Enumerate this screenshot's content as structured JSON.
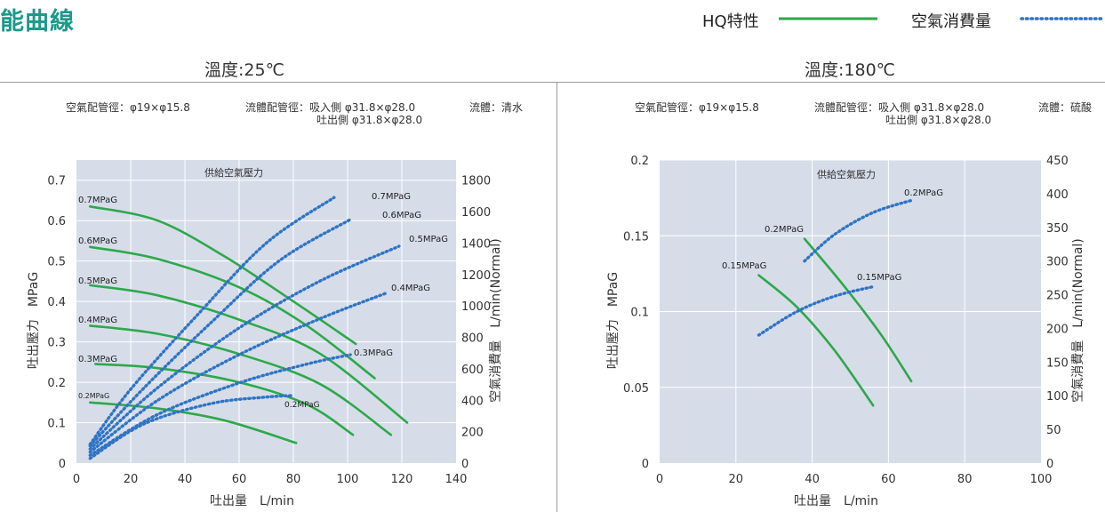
{
  "header": {
    "title": "能曲線",
    "legend": [
      {
        "label": "HQ特性",
        "style": "solid",
        "color": "#2ea84a"
      },
      {
        "label": "空氣消費量",
        "style": "dotted",
        "color": "#2f74c4"
      }
    ]
  },
  "colors": {
    "hq": "#2ea84a",
    "air": "#2f74c4",
    "plot_bg": "#d6dde9",
    "title": "#1a9a8a"
  },
  "panels": [
    {
      "title": "溫度:25℃",
      "spec": {
        "air_pipe": "空氣配管徑：φ19×φ15.8",
        "fluid_pipe_in": "流體配管徑：吸入側  φ31.8×φ28.0",
        "fluid_pipe_out": "吐出側  φ31.8×φ28.0",
        "fluid": "流體：清水"
      }
    },
    {
      "title": "溫度:180℃",
      "spec": {
        "air_pipe": "空氣配管徑：φ19×φ15.8",
        "fluid_pipe_in": "流體配管徑：吸入側  φ31.8×φ28.0",
        "fluid_pipe_out": "吐出側  φ31.8×φ28.0",
        "fluid": "流體：硫酸"
      }
    }
  ],
  "chart_data": [
    {
      "type": "line",
      "annotation": "供給空氣壓力",
      "xlabel": "吐出量　L/min",
      "ylabel": "吐出壓力　MPaG",
      "y2label": "空氣消費量　L/min(Normal)",
      "xlim": [
        0,
        140
      ],
      "ylim": [
        0,
        0.75
      ],
      "y2lim": [
        0,
        1928.57
      ],
      "x_ticks": [
        0,
        20,
        40,
        60,
        80,
        100,
        120,
        140
      ],
      "y_ticks": [
        0,
        0.1,
        0.2,
        0.3,
        0.4,
        0.5,
        0.6,
        0.7
      ],
      "y2_ticks": [
        0,
        200,
        400,
        600,
        800,
        1000,
        1200,
        1400,
        1600,
        1800
      ],
      "grid": true,
      "hq_series": [
        {
          "name": "0.7MPaG",
          "x": [
            5,
            30,
            55,
            80,
            103
          ],
          "y": [
            0.635,
            0.6,
            0.51,
            0.4,
            0.295
          ]
        },
        {
          "name": "0.6MPaG",
          "x": [
            5,
            30,
            60,
            85,
            110
          ],
          "y": [
            0.535,
            0.505,
            0.435,
            0.34,
            0.21
          ]
        },
        {
          "name": "0.5MPaG",
          "x": [
            5,
            30,
            60,
            90,
            122
          ],
          "y": [
            0.44,
            0.415,
            0.355,
            0.27,
            0.1
          ]
        },
        {
          "name": "0.4MPaG",
          "x": [
            5,
            30,
            60,
            90,
            116
          ],
          "y": [
            0.34,
            0.32,
            0.27,
            0.195,
            0.07
          ]
        },
        {
          "name": "0.3MPaG",
          "x": [
            7,
            30,
            60,
            85,
            102
          ],
          "y": [
            0.245,
            0.235,
            0.2,
            0.145,
            0.07
          ]
        },
        {
          "name": "0.2MPaG",
          "x": [
            5,
            30,
            55,
            81
          ],
          "y": [
            0.15,
            0.135,
            0.105,
            0.05
          ]
        }
      ],
      "air_series": [
        {
          "name": "0.7MPaG",
          "x": [
            5,
            20,
            45,
            70,
            95
          ],
          "y": [
            120,
            470,
            950,
            1400,
            1690
          ]
        },
        {
          "name": "0.6MPaG",
          "x": [
            5,
            25,
            50,
            75,
            101
          ],
          "y": [
            110,
            480,
            900,
            1290,
            1550
          ]
        },
        {
          "name": "0.5MPaG",
          "x": [
            5,
            30,
            60,
            90,
            119
          ],
          "y": [
            90,
            480,
            860,
            1160,
            1380
          ]
        },
        {
          "name": "0.4MPaG",
          "x": [
            5,
            30,
            60,
            90,
            114
          ],
          "y": [
            70,
            400,
            690,
            920,
            1080
          ]
        },
        {
          "name": "0.3MPaG",
          "x": [
            5,
            30,
            60,
            85,
            101
          ],
          "y": [
            50,
            310,
            510,
            630,
            690
          ]
        },
        {
          "name": "0.2MPaG",
          "x": [
            5,
            25,
            50,
            70,
            80
          ],
          "y": [
            30,
            250,
            380,
            420,
            430
          ]
        }
      ]
    },
    {
      "type": "line",
      "annotation": "供給空氣壓力",
      "xlabel": "吐出量　L/min",
      "ylabel": "吐出壓力　MPaG",
      "y2label": "空氣消費量　L/min(Normal)",
      "xlim": [
        0,
        100
      ],
      "ylim": [
        0,
        0.2
      ],
      "y2lim": [
        0,
        450
      ],
      "x_ticks": [
        0,
        20,
        40,
        60,
        80,
        100
      ],
      "y_ticks": [
        0,
        0.05,
        0.1,
        0.15,
        0.2
      ],
      "y2_ticks": [
        0,
        50,
        100,
        150,
        200,
        250,
        300,
        350,
        400,
        450
      ],
      "grid": true,
      "hq_series": [
        {
          "name": "0.2MPaG",
          "x": [
            38,
            48,
            58,
            66
          ],
          "y": [
            0.148,
            0.118,
            0.085,
            0.054
          ]
        },
        {
          "name": "0.15MPaG",
          "x": [
            26,
            36,
            46,
            56
          ],
          "y": [
            0.124,
            0.103,
            0.074,
            0.038
          ]
        }
      ],
      "air_series": [
        {
          "name": "0.2MPaG",
          "x": [
            38,
            46,
            56,
            66
          ],
          "y": [
            300,
            340,
            372,
            390
          ]
        },
        {
          "name": "0.15MPaG",
          "x": [
            26,
            36,
            46,
            56
          ],
          "y": [
            190,
            225,
            248,
            262
          ]
        }
      ]
    }
  ]
}
